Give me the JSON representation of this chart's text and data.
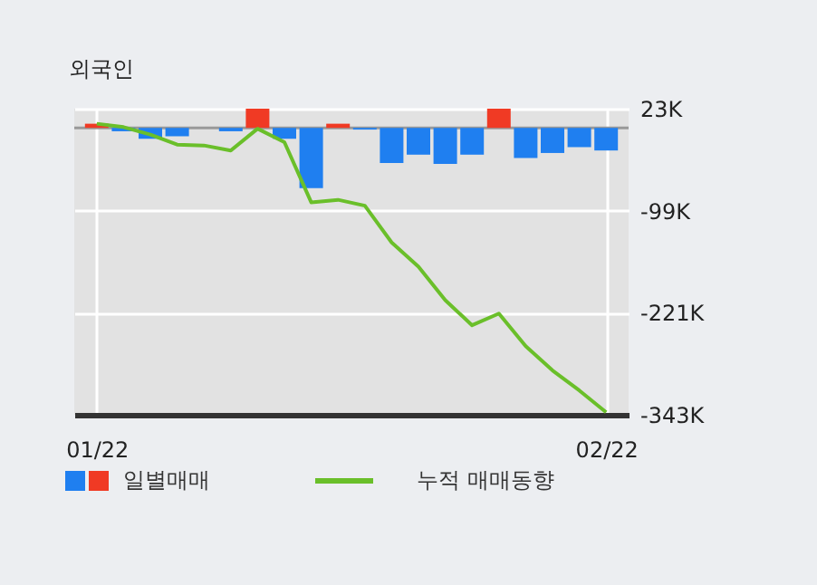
{
  "chart_data": {
    "type": "bar",
    "title": "외국인",
    "categories": [
      "01/22",
      null,
      null,
      null,
      null,
      null,
      null,
      null,
      null,
      null,
      null,
      null,
      null,
      null,
      null,
      null,
      null,
      null,
      null,
      "02/22"
    ],
    "series": [
      {
        "name": "일별매매",
        "colors": [
          "#f03a24",
          "#1f7ff0",
          "#1f7ff0",
          "#1f7ff0",
          "#1f7ff0",
          "#1f7ff0",
          "#f03a24",
          "#1f7ff0",
          "#1f7ff0",
          "#f03a24",
          "#1f7ff0",
          "#1f7ff0",
          "#1f7ff0",
          "#1f7ff0",
          "#1f7ff0",
          "#f03a24",
          "#1f7ff0",
          "#1f7ff0",
          "#1f7ff0",
          "#1f7ff0"
        ],
        "values": [
          5,
          -4,
          -13,
          -10,
          0,
          -4,
          23,
          -13,
          -72,
          5,
          -2,
          -42,
          -32,
          -43,
          -32,
          23,
          -36,
          -30,
          -23,
          -27
        ]
      },
      {
        "name": "누적 매매동향",
        "type": "line",
        "color": "#6abf2a",
        "values": [
          5,
          1,
          -8,
          -20,
          -21,
          -27,
          -1,
          -17,
          -89,
          -86,
          -93,
          -137,
          -166,
          -206,
          -236,
          -222,
          -261,
          -290,
          -314,
          -340
        ]
      }
    ],
    "ylim": [
      -343,
      23
    ],
    "yticks": [
      {
        "value": 23,
        "label": "23K"
      },
      {
        "value": -99,
        "label": "-99K"
      },
      {
        "value": -221,
        "label": "-221K"
      },
      {
        "value": -343,
        "label": "-343K"
      }
    ],
    "grid": true,
    "legend": "bottom"
  }
}
